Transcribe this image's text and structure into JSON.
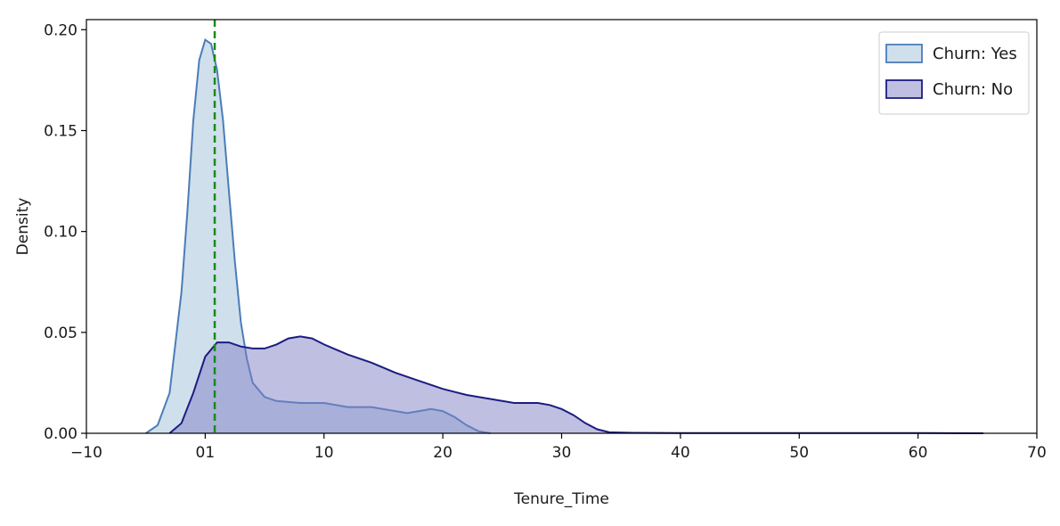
{
  "chart_data": {
    "type": "area",
    "xlabel": "Tenure_Time",
    "ylabel": "Density",
    "xlim": [
      -10,
      70
    ],
    "ylim": [
      0,
      0.205
    ],
    "x_ticks": [
      -10,
      0,
      10,
      20,
      30,
      40,
      50,
      60,
      70
    ],
    "x_tick_labels": [
      "−10",
      "01",
      "10",
      "20",
      "30",
      "40",
      "50",
      "60",
      "70"
    ],
    "y_ticks": [
      0,
      0.05,
      0.1,
      0.15,
      0.2
    ],
    "y_tick_labels": [
      "0.00",
      "0.05",
      "0.10",
      "0.15",
      "0.20"
    ],
    "grid": false,
    "legend_position": "top-right",
    "reference_line": {
      "x": 0.8,
      "color": "#1a8a1a",
      "style": "dashed"
    },
    "series": [
      {
        "name": "Churn: Yes",
        "fill": "#a9c4dc",
        "line": "#4a7db8",
        "x": [
          -5,
          -4,
          -3,
          -2,
          -1.5,
          -1,
          -0.5,
          0,
          0.5,
          1,
          1.5,
          2,
          2.5,
          3,
          3.5,
          4,
          5,
          6,
          8,
          10,
          12,
          14,
          16,
          17,
          18,
          19,
          20,
          21,
          22,
          23,
          24
        ],
        "y": [
          0,
          0.004,
          0.02,
          0.07,
          0.11,
          0.155,
          0.185,
          0.195,
          0.193,
          0.18,
          0.155,
          0.12,
          0.085,
          0.055,
          0.037,
          0.025,
          0.018,
          0.016,
          0.015,
          0.015,
          0.013,
          0.013,
          0.011,
          0.01,
          0.011,
          0.012,
          0.011,
          0.008,
          0.004,
          0.001,
          0
        ]
      },
      {
        "name": "Churn: No",
        "fill": "#8080c4",
        "line": "#1c1c80",
        "x": [
          -3,
          -2,
          -1,
          0,
          1,
          2,
          3,
          4,
          5,
          6,
          7,
          8,
          9,
          10,
          12,
          14,
          16,
          18,
          20,
          22,
          24,
          26,
          28,
          29,
          30,
          31,
          32,
          33,
          34,
          36,
          40,
          50,
          60,
          65.5
        ],
        "y": [
          0,
          0.005,
          0.02,
          0.038,
          0.045,
          0.045,
          0.043,
          0.042,
          0.042,
          0.044,
          0.047,
          0.048,
          0.047,
          0.044,
          0.039,
          0.035,
          0.03,
          0.026,
          0.022,
          0.019,
          0.017,
          0.015,
          0.015,
          0.014,
          0.012,
          0.009,
          0.005,
          0.002,
          0.0005,
          0.0002,
          0.0001,
          0.0001,
          0.0001,
          0
        ]
      }
    ]
  }
}
